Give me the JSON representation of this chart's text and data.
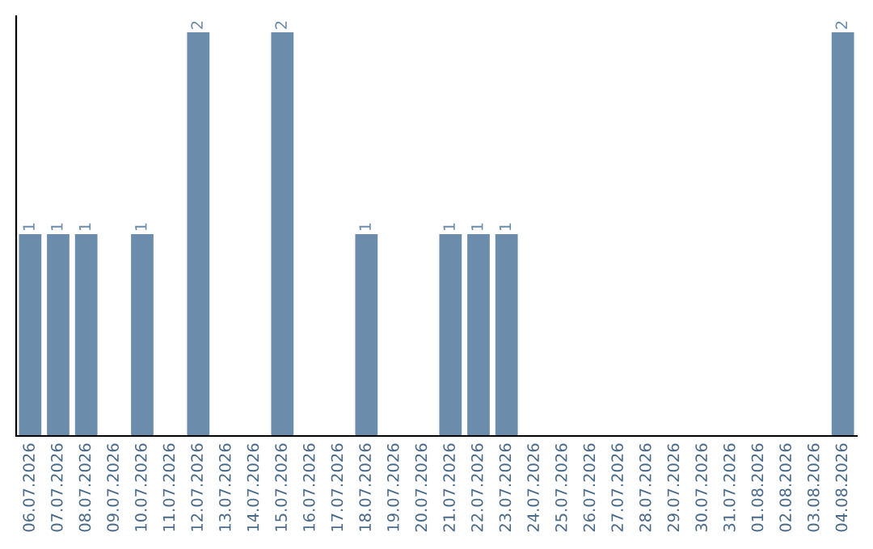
{
  "chart_data": {
    "type": "bar",
    "categories": [
      "06.07.2026",
      "07.07.2026",
      "08.07.2026",
      "09.07.2026",
      "10.07.2026",
      "11.07.2026",
      "12.07.2026",
      "13.07.2026",
      "14.07.2026",
      "15.07.2026",
      "16.07.2026",
      "17.07.2026",
      "18.07.2026",
      "19.07.2026",
      "20.07.2026",
      "21.07.2026",
      "22.07.2026",
      "23.07.2026",
      "24.07.2026",
      "25.07.2026",
      "26.07.2026",
      "27.07.2026",
      "28.07.2026",
      "29.07.2026",
      "30.07.2026",
      "31.07.2026",
      "01.08.2026",
      "02.08.2026",
      "03.08.2026",
      "04.08.2026"
    ],
    "values": [
      1,
      1,
      1,
      0,
      1,
      0,
      2,
      0,
      0,
      2,
      0,
      0,
      1,
      0,
      0,
      1,
      1,
      1,
      0,
      0,
      0,
      0,
      0,
      0,
      0,
      0,
      0,
      0,
      0,
      2
    ],
    "value_labels": [
      "1",
      "1",
      "1",
      null,
      "1",
      null,
      "2",
      null,
      null,
      "2",
      null,
      null,
      "1",
      null,
      null,
      "1",
      "1",
      "1",
      null,
      null,
      null,
      null,
      null,
      null,
      null,
      null,
      null,
      null,
      null,
      "2"
    ],
    "color": "#6b8caa",
    "ylim": [
      0,
      2.08
    ],
    "tick_labels": "x",
    "grid": false,
    "legend": false
  }
}
